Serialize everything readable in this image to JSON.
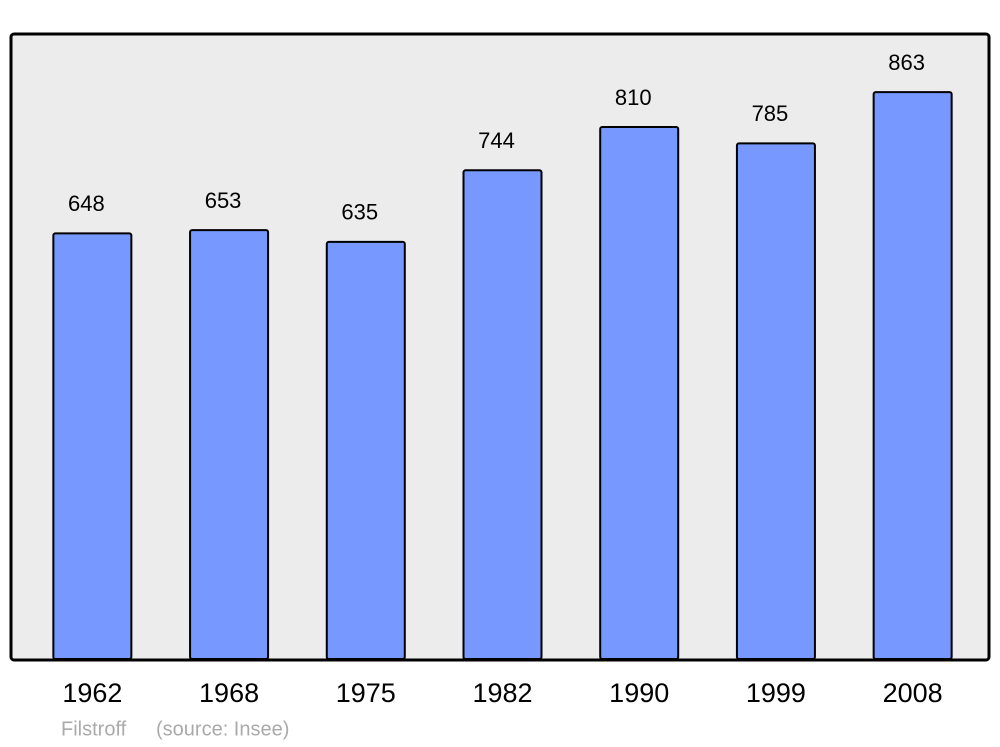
{
  "chart_data": {
    "type": "bar",
    "categories": [
      "1962",
      "1968",
      "1975",
      "1982",
      "1990",
      "1999",
      "2008"
    ],
    "values": [
      648,
      653,
      635,
      744,
      810,
      785,
      863
    ],
    "color": "#7799ff",
    "ylim": [
      0,
      950
    ],
    "place": "Filstroff",
    "source": "(source: Insee)"
  }
}
